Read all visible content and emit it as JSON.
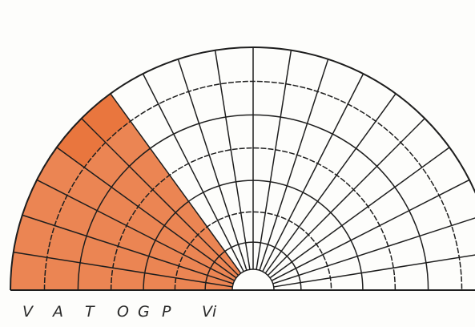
{
  "colors": {
    "fill": "#e8743b",
    "ink": "#1e1e1e",
    "paper": "#fdfdfb"
  },
  "grid": {
    "ring_count": 7,
    "spoke_count": 20,
    "shaded_regions": [
      {
        "name": "outer-wedge",
        "rings": [
          3,
          7
        ],
        "spokes": [
          0,
          6
        ]
      },
      {
        "name": "outer-tip",
        "rings": [
          6,
          7
        ],
        "spokes": [
          4,
          6
        ]
      },
      {
        "name": "inner-wedge",
        "rings": [
          0,
          3
        ],
        "spokes": [
          0,
          6
        ]
      }
    ]
  },
  "labels": [
    {
      "id": "v",
      "text": "V"
    },
    {
      "id": "a",
      "text": "A"
    },
    {
      "id": "t",
      "text": "T"
    },
    {
      "id": "o",
      "text": "O"
    },
    {
      "id": "g",
      "text": "G"
    },
    {
      "id": "p",
      "text": "P"
    },
    {
      "id": "vi",
      "text": "Vi"
    }
  ]
}
